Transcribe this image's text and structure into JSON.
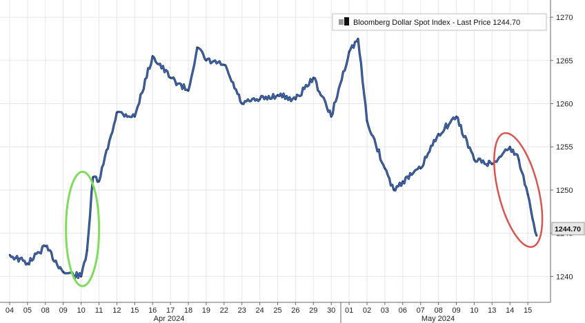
{
  "chart_data": {
    "type": "line",
    "legend": "Bloomberg Dollar Spot Index - Last Price 1244.70",
    "last_price_label": "1244.70",
    "y_ticks": [
      "1240",
      "1245",
      "1250",
      "1255",
      "1260",
      "1265",
      "1270"
    ],
    "ylim": [
      1237,
      1272
    ],
    "x_ticks": [
      "04",
      "05",
      "08",
      "09",
      "10",
      "11",
      "12",
      "15",
      "16",
      "17",
      "18",
      "19",
      "22",
      "23",
      "24",
      "25",
      "26",
      "29",
      "30",
      "01",
      "02",
      "03",
      "06",
      "07",
      "08",
      "09",
      "10",
      "13",
      "14",
      "15"
    ],
    "month_labels": [
      "Apr 2024",
      "May 2024"
    ],
    "x": [
      "04",
      "05",
      "08",
      "09",
      "10",
      "10",
      "10",
      "11",
      "12",
      "15",
      "16",
      "17",
      "18",
      "18",
      "19",
      "22",
      "23",
      "24",
      "25",
      "26",
      "29",
      "30",
      "01",
      "01",
      "02",
      "03",
      "03",
      "06",
      "07",
      "08",
      "09",
      "10",
      "13",
      "14",
      "14",
      "15",
      "15"
    ],
    "series": [
      {
        "values": [
          1242.5,
          1241.5,
          1243.5,
          1240.5,
          1240.0,
          1243.0,
          1251.5,
          1251.0,
          1259.0,
          1258.5,
          1265.5,
          1263.0,
          1261.5,
          1266.5,
          1265.0,
          1264.5,
          1260.0,
          1260.5,
          1261.0,
          1260.5,
          1263.0,
          1258.5,
          1266.0,
          1267.5,
          1258.0,
          1252.5,
          1250.0,
          1251.0,
          1252.5,
          1256.5,
          1258.5,
          1253.5,
          1253.0,
          1255.0,
          1253.5,
          1249.5,
          1244.7
        ],
        "color": "#0d3a7a"
      }
    ],
    "annotations": [
      {
        "shape": "ellipse",
        "color": "#7fdc5a",
        "near": "10 Apr"
      },
      {
        "shape": "ellipse",
        "color": "#d9534f",
        "near": "14-15 May"
      }
    ],
    "grid": true,
    "legend_position": "top-right"
  }
}
